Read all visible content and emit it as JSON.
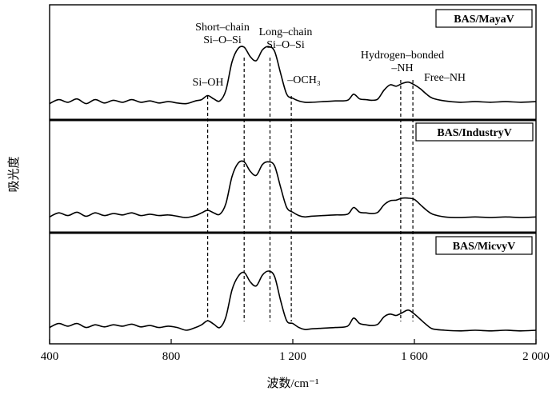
{
  "chart_data": {
    "type": "line",
    "xlabel": "波数/cm⁻¹",
    "ylabel": "吸光度",
    "xlim": [
      400,
      2000
    ],
    "xticks": [
      400,
      800,
      1200,
      1600,
      2000
    ],
    "xtick_labels": [
      "400",
      "800",
      "1 200",
      "1 600",
      "2 000"
    ],
    "ref_lines": [
      {
        "x": 920,
        "label": "Si–OH"
      },
      {
        "x": 1040,
        "label_lines": [
          "Short–chain",
          "Si–O–Si"
        ]
      },
      {
        "x": 1125,
        "label_lines": [
          "Long–chain",
          "Si–O–Si"
        ]
      },
      {
        "x": 1195,
        "label": "–OCH₃"
      },
      {
        "x": 1555,
        "label_lines": [
          "Hydrogen–bonded",
          "–NH"
        ]
      },
      {
        "x": 1595,
        "label": "Free–NH"
      }
    ],
    "series": [
      {
        "name": "BAS/MayaV",
        "x": [
          400,
          430,
          460,
          490,
          520,
          550,
          580,
          610,
          640,
          670,
          700,
          730,
          760,
          790,
          820,
          850,
          880,
          900,
          920,
          940,
          960,
          980,
          1000,
          1020,
          1040,
          1060,
          1080,
          1100,
          1120,
          1140,
          1160,
          1180,
          1200,
          1220,
          1240,
          1260,
          1300,
          1340,
          1380,
          1400,
          1420,
          1440,
          1460,
          1480,
          1500,
          1520,
          1540,
          1560,
          1580,
          1600,
          1620,
          1640,
          1660,
          1700,
          1750,
          1800,
          1850,
          1900,
          1950,
          2000
        ],
        "y": [
          0.1,
          0.16,
          0.12,
          0.17,
          0.1,
          0.16,
          0.11,
          0.15,
          0.12,
          0.16,
          0.12,
          0.14,
          0.11,
          0.13,
          0.11,
          0.1,
          0.14,
          0.16,
          0.22,
          0.17,
          0.14,
          0.3,
          0.72,
          0.92,
          0.94,
          0.8,
          0.74,
          0.9,
          0.95,
          0.88,
          0.55,
          0.24,
          0.18,
          0.14,
          0.12,
          0.12,
          0.13,
          0.14,
          0.15,
          0.24,
          0.17,
          0.16,
          0.15,
          0.17,
          0.3,
          0.38,
          0.36,
          0.4,
          0.42,
          0.38,
          0.32,
          0.24,
          0.18,
          0.14,
          0.12,
          0.13,
          0.12,
          0.13,
          0.12,
          0.13
        ]
      },
      {
        "name": "BAS/IndustryV",
        "x": [
          400,
          430,
          460,
          490,
          520,
          550,
          580,
          610,
          640,
          670,
          700,
          730,
          760,
          790,
          820,
          850,
          880,
          900,
          920,
          940,
          960,
          980,
          1000,
          1020,
          1040,
          1060,
          1080,
          1100,
          1120,
          1140,
          1160,
          1180,
          1200,
          1220,
          1240,
          1260,
          1300,
          1340,
          1380,
          1400,
          1420,
          1440,
          1460,
          1480,
          1500,
          1520,
          1540,
          1560,
          1580,
          1600,
          1620,
          1640,
          1660,
          1700,
          1750,
          1800,
          1850,
          1900,
          1950,
          2000
        ],
        "y": [
          0.08,
          0.14,
          0.1,
          0.15,
          0.09,
          0.14,
          0.1,
          0.13,
          0.11,
          0.14,
          0.1,
          0.12,
          0.1,
          0.11,
          0.09,
          0.07,
          0.1,
          0.14,
          0.18,
          0.14,
          0.12,
          0.28,
          0.68,
          0.88,
          0.9,
          0.76,
          0.7,
          0.86,
          0.9,
          0.84,
          0.52,
          0.22,
          0.15,
          0.1,
          0.08,
          0.09,
          0.1,
          0.11,
          0.12,
          0.22,
          0.15,
          0.14,
          0.13,
          0.15,
          0.26,
          0.32,
          0.33,
          0.36,
          0.36,
          0.34,
          0.26,
          0.18,
          0.12,
          0.08,
          0.07,
          0.08,
          0.07,
          0.08,
          0.07,
          0.08
        ]
      },
      {
        "name": "BAS/MicvyV",
        "x": [
          400,
          430,
          460,
          490,
          520,
          550,
          580,
          610,
          640,
          670,
          700,
          730,
          760,
          790,
          820,
          850,
          880,
          900,
          920,
          940,
          960,
          980,
          1000,
          1020,
          1040,
          1060,
          1080,
          1100,
          1120,
          1140,
          1160,
          1180,
          1200,
          1220,
          1240,
          1260,
          1300,
          1340,
          1380,
          1400,
          1420,
          1440,
          1460,
          1480,
          1500,
          1520,
          1540,
          1560,
          1580,
          1600,
          1620,
          1640,
          1660,
          1700,
          1750,
          1800,
          1850,
          1900,
          1950,
          2000
        ],
        "y": [
          0.1,
          0.16,
          0.12,
          0.16,
          0.1,
          0.14,
          0.11,
          0.14,
          0.12,
          0.15,
          0.11,
          0.13,
          0.1,
          0.12,
          0.1,
          0.06,
          0.1,
          0.14,
          0.2,
          0.15,
          0.1,
          0.26,
          0.66,
          0.86,
          0.92,
          0.78,
          0.72,
          0.88,
          0.94,
          0.86,
          0.5,
          0.2,
          0.16,
          0.1,
          0.07,
          0.08,
          0.09,
          0.1,
          0.12,
          0.24,
          0.16,
          0.14,
          0.13,
          0.15,
          0.26,
          0.3,
          0.28,
          0.32,
          0.36,
          0.3,
          0.22,
          0.14,
          0.08,
          0.06,
          0.05,
          0.06,
          0.05,
          0.06,
          0.05,
          0.06
        ]
      }
    ]
  }
}
